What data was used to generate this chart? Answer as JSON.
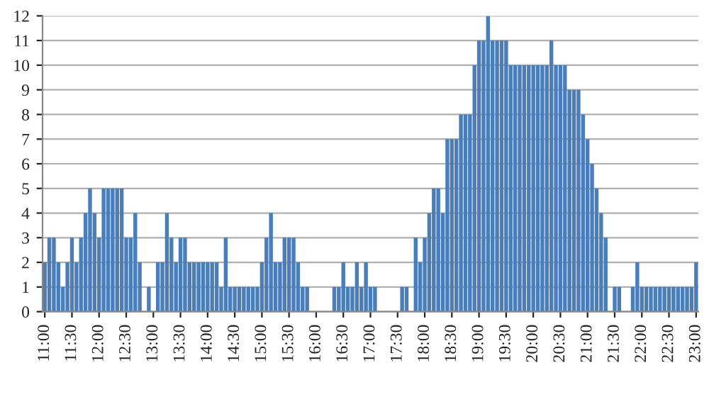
{
  "chart_data": {
    "type": "bar",
    "color": "#4a7ebb",
    "ylim": [
      0,
      12
    ],
    "yticks": [
      0,
      1,
      2,
      3,
      4,
      5,
      6,
      7,
      8,
      9,
      10,
      11,
      12
    ],
    "grid": "y",
    "categories": [
      "11:00",
      null,
      null,
      null,
      null,
      null,
      "11:30",
      null,
      null,
      null,
      null,
      null,
      "12:00",
      null,
      null,
      null,
      null,
      null,
      "12:30",
      null,
      null,
      null,
      null,
      null,
      "13:00",
      null,
      null,
      null,
      null,
      null,
      "13:30",
      null,
      null,
      null,
      null,
      null,
      "14:00",
      null,
      null,
      null,
      null,
      null,
      "14:30",
      null,
      null,
      null,
      null,
      null,
      "15:00",
      null,
      null,
      null,
      null,
      null,
      "15:30",
      null,
      null,
      null,
      null,
      null,
      "16:00",
      null,
      null,
      null,
      null,
      null,
      "16:30",
      null,
      null,
      null,
      null,
      null,
      "17:00",
      null,
      null,
      null,
      null,
      null,
      "17:30",
      null,
      null,
      null,
      null,
      null,
      "18:00",
      null,
      null,
      null,
      null,
      null,
      "18:30",
      null,
      null,
      null,
      null,
      null,
      "19:00",
      null,
      null,
      null,
      null,
      null,
      "19:30",
      null,
      null,
      null,
      null,
      null,
      "20:00",
      null,
      null,
      null,
      null,
      null,
      "20:30",
      null,
      null,
      null,
      null,
      null,
      "21:00",
      null,
      null,
      null,
      null,
      null,
      "21:30",
      null,
      null,
      null,
      null,
      null,
      "22:00",
      null,
      null,
      null,
      null,
      null,
      "22:30",
      null,
      null,
      null,
      null,
      null,
      "23:00"
    ],
    "values": [
      2,
      3,
      3,
      2,
      1,
      2,
      3,
      2,
      3,
      4,
      5,
      4,
      3,
      5,
      5,
      5,
      5,
      5,
      3,
      3,
      4,
      2,
      0,
      1,
      0,
      2,
      2,
      4,
      3,
      2,
      3,
      3,
      2,
      2,
      2,
      2,
      2,
      2,
      2,
      1,
      3,
      1,
      1,
      1,
      1,
      1,
      1,
      1,
      2,
      3,
      4,
      2,
      2,
      3,
      3,
      3,
      2,
      1,
      1,
      0,
      0,
      0,
      0,
      0,
      1,
      1,
      2,
      1,
      1,
      2,
      1,
      2,
      1,
      1,
      0,
      0,
      0,
      0,
      0,
      1,
      1,
      0,
      3,
      2,
      3,
      4,
      5,
      5,
      4,
      7,
      7,
      7,
      8,
      8,
      8,
      10,
      11,
      11,
      12,
      11,
      11,
      11,
      11,
      10,
      10,
      10,
      10,
      10,
      10,
      10,
      10,
      10,
      11,
      10,
      10,
      10,
      9,
      9,
      9,
      8,
      7,
      6,
      5,
      4,
      3,
      0,
      1,
      1,
      0,
      0,
      1,
      2,
      1,
      1,
      1,
      1,
      1,
      1,
      1,
      1,
      1,
      1,
      1,
      1,
      2
    ]
  }
}
